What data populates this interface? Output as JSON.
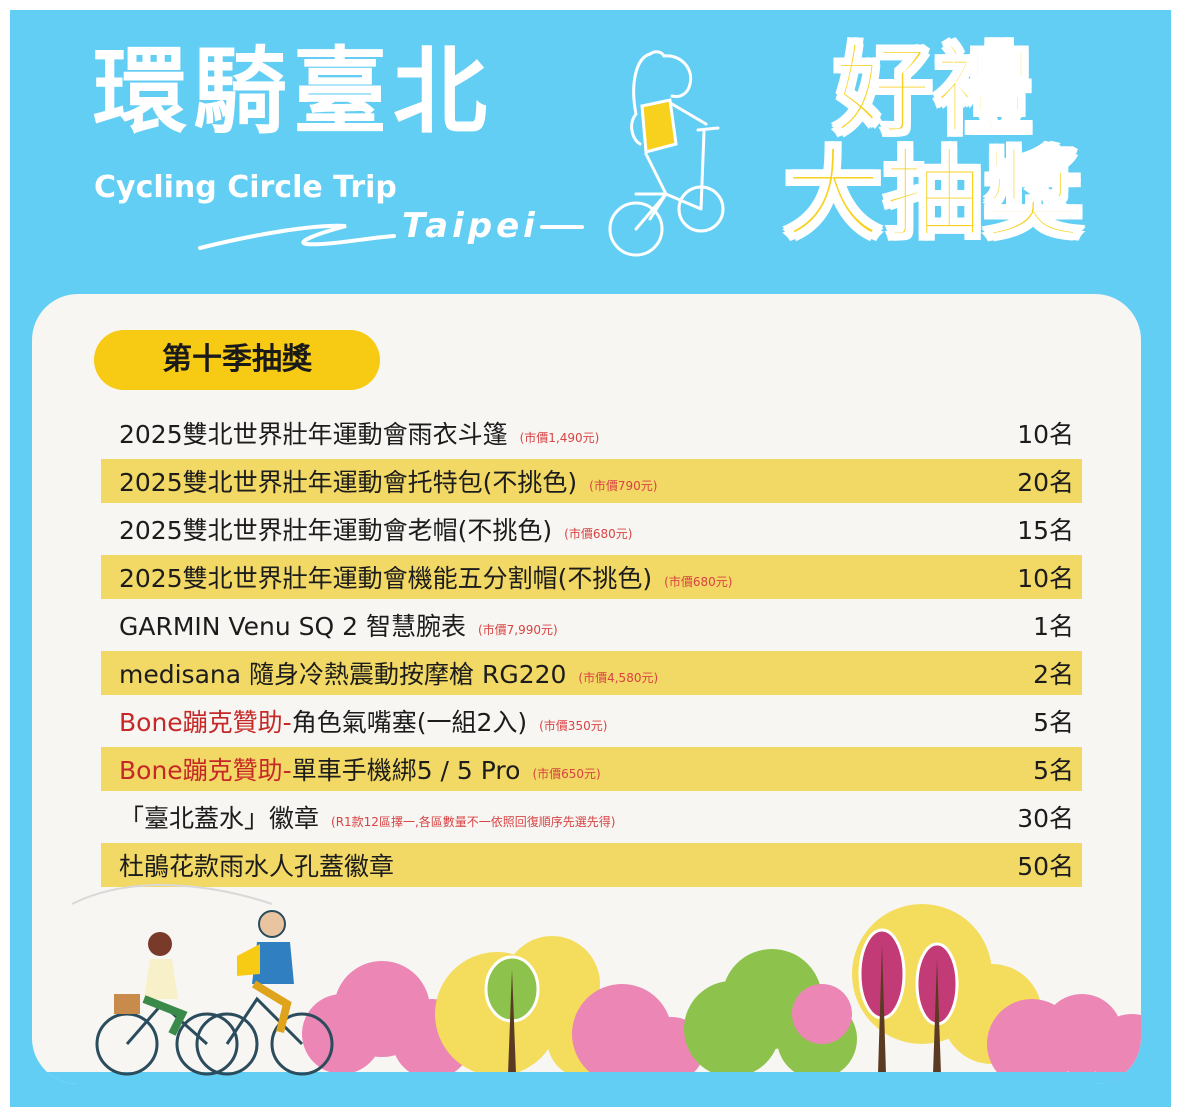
{
  "header": {
    "title_zh": "環騎臺北",
    "title_en": "Cycling Circle Trip",
    "city": "Taipei",
    "promo_line1": "好禮",
    "promo_line2": "大抽獎"
  },
  "season_label": "第十季抽獎",
  "prizes": [
    {
      "sponsor": "",
      "name": "2025雙北世界壯年運動會雨衣斗篷",
      "price": "(市價1,490元)",
      "qty": "10名"
    },
    {
      "sponsor": "",
      "name": "2025雙北世界壯年運動會托特包(不挑色)",
      "price": "(市價790元)",
      "qty": "20名"
    },
    {
      "sponsor": "",
      "name": "2025雙北世界壯年運動會老帽(不挑色)",
      "price": "(市價680元)",
      "qty": "15名"
    },
    {
      "sponsor": "",
      "name": "2025雙北世界壯年運動會機能五分割帽(不挑色)",
      "price": "(市價680元)",
      "qty": "10名"
    },
    {
      "sponsor": "",
      "name": "GARMIN Venu SQ 2 智慧腕表",
      "price": "(市價7,990元)",
      "qty": "1名"
    },
    {
      "sponsor": "",
      "name": "medisana 隨身冷熱震動按摩槍 RG220",
      "price": "(市價4,580元)",
      "qty": "2名"
    },
    {
      "sponsor": "Bone蹦克贊助-",
      "name": "角色氣嘴塞(一組2入)",
      "price": "(市價350元)",
      "qty": "5名"
    },
    {
      "sponsor": "Bone蹦克贊助-",
      "name": "單車手機綁5 / 5 Pro",
      "price": "(市價650元)",
      "qty": "5名"
    },
    {
      "sponsor": "",
      "name": "「臺北蓋水」徽章",
      "price": "(R1款12區擇一,各區數量不一依照回復順序先選先得)",
      "qty": "30名"
    },
    {
      "sponsor": "",
      "name": "杜鵑花款雨水人孔蓋徽章",
      "price": "",
      "qty": "50名"
    }
  ],
  "colors": {
    "sky": "#63cef4",
    "panel": "#f7f6f3",
    "accent_yellow": "#f7ca14",
    "band_yellow": "#f2d864",
    "sponsor_red": "#c62828",
    "price_red": "#d84343"
  }
}
